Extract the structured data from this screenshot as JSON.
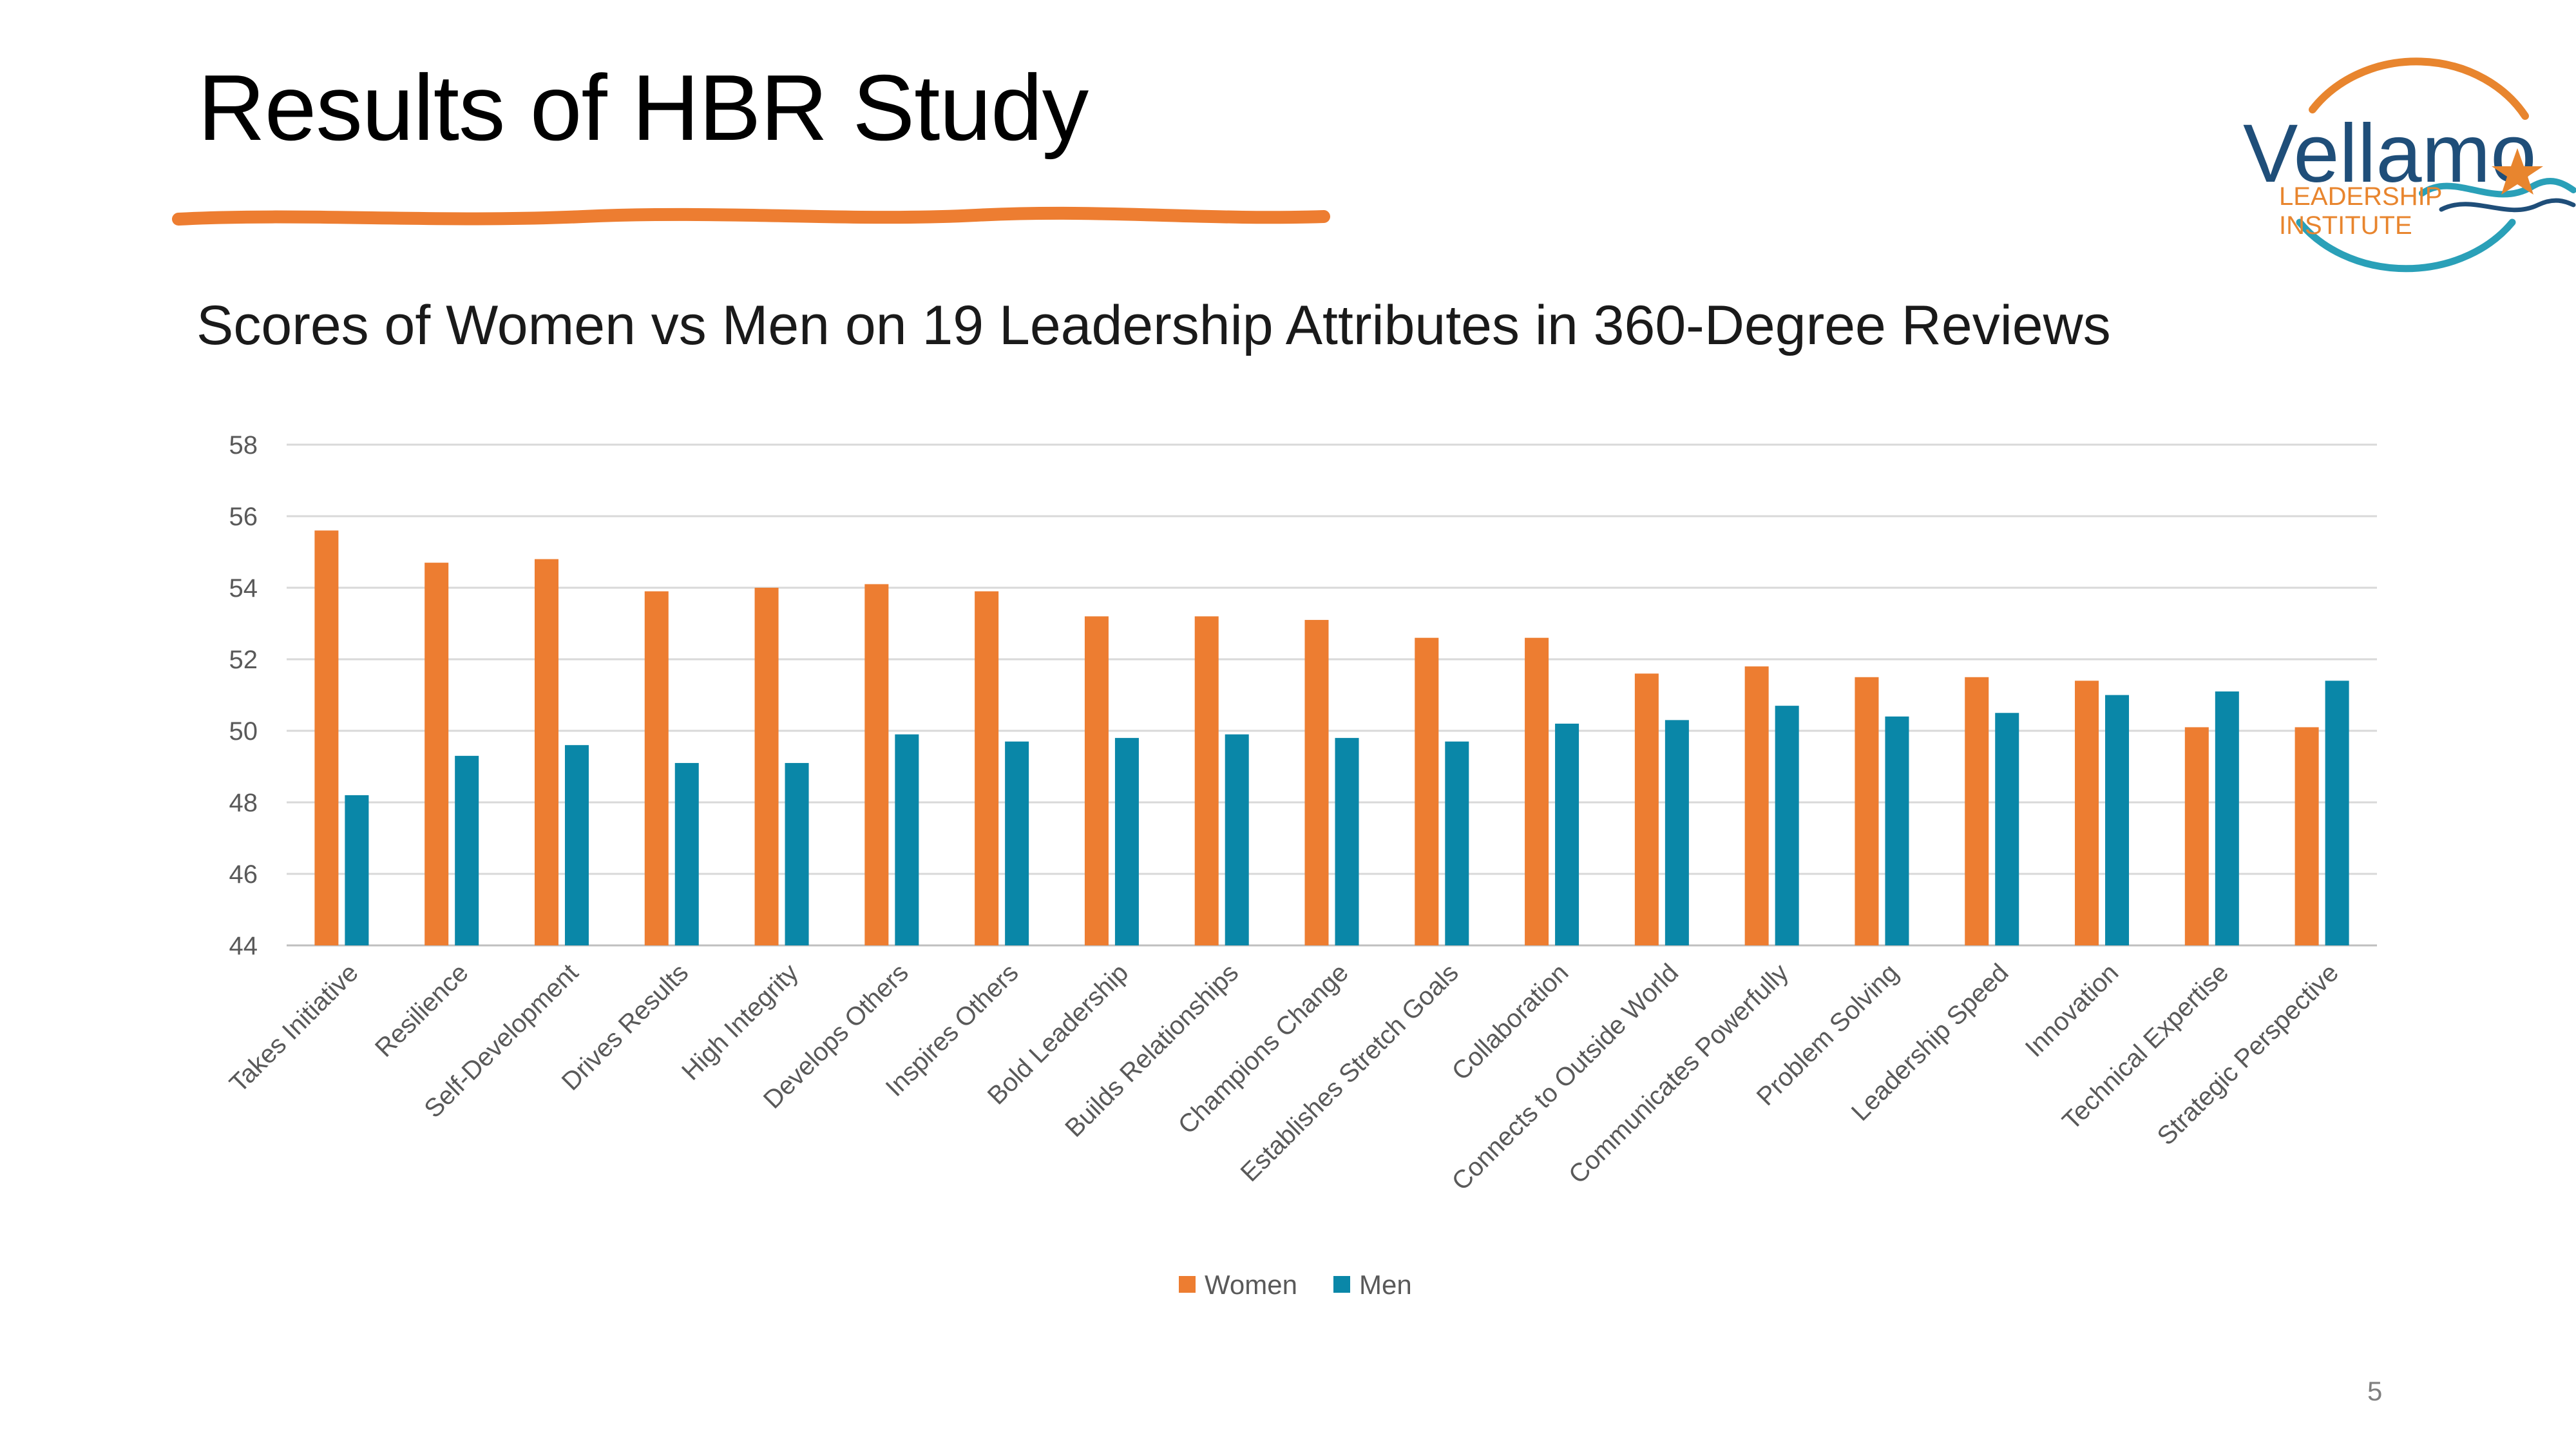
{
  "slide": {
    "title": "Results of HBR Study",
    "subtitle": "Scores of Women vs Men on 19 Leadership Attributes in 360-Degree Reviews",
    "page_number": "5"
  },
  "logo": {
    "brand": "Vellamo",
    "line1": "LEADERSHIP",
    "line2": "INSTITUTE",
    "colors": {
      "text": "#1f4e79",
      "orange": "#e8852e",
      "teal": "#2aa0b8"
    }
  },
  "colors": {
    "women": "#ed7d31",
    "men": "#0a87a8",
    "grid": "#d9d9d9",
    "axis_text": "#595959",
    "underline": "#ed7d31"
  },
  "chart_data": {
    "type": "bar",
    "title": "",
    "xlabel": "",
    "ylabel": "",
    "ylim": [
      44,
      58
    ],
    "yticks": [
      44,
      46,
      48,
      50,
      52,
      54,
      56,
      58
    ],
    "grid": true,
    "legend_position": "bottom",
    "categories": [
      "Takes Initiative",
      "Resilience",
      "Self-Development",
      "Drives Results",
      "High Integrity",
      "Develops Others",
      "Inspires Others",
      "Bold Leadership",
      "Builds Relationships",
      "Champions Change",
      "Establishes Stretch Goals",
      "Collaboration",
      "Connects to Outside World",
      "Communicates Powerfully",
      "Problem Solving",
      "Leadership Speed",
      "Innovation",
      "Technical Expertise",
      "Strategic Perspective"
    ],
    "series": [
      {
        "name": "Women",
        "values": [
          55.6,
          54.7,
          54.8,
          53.9,
          54.0,
          54.1,
          53.9,
          53.2,
          53.2,
          53.1,
          52.6,
          52.6,
          51.6,
          51.8,
          51.5,
          51.5,
          51.4,
          50.1,
          50.1
        ]
      },
      {
        "name": "Men",
        "values": [
          48.2,
          49.3,
          49.6,
          49.1,
          49.1,
          49.9,
          49.7,
          49.8,
          49.9,
          49.8,
          49.7,
          50.2,
          50.3,
          50.7,
          50.4,
          50.5,
          51.0,
          51.1,
          51.4
        ]
      }
    ]
  }
}
